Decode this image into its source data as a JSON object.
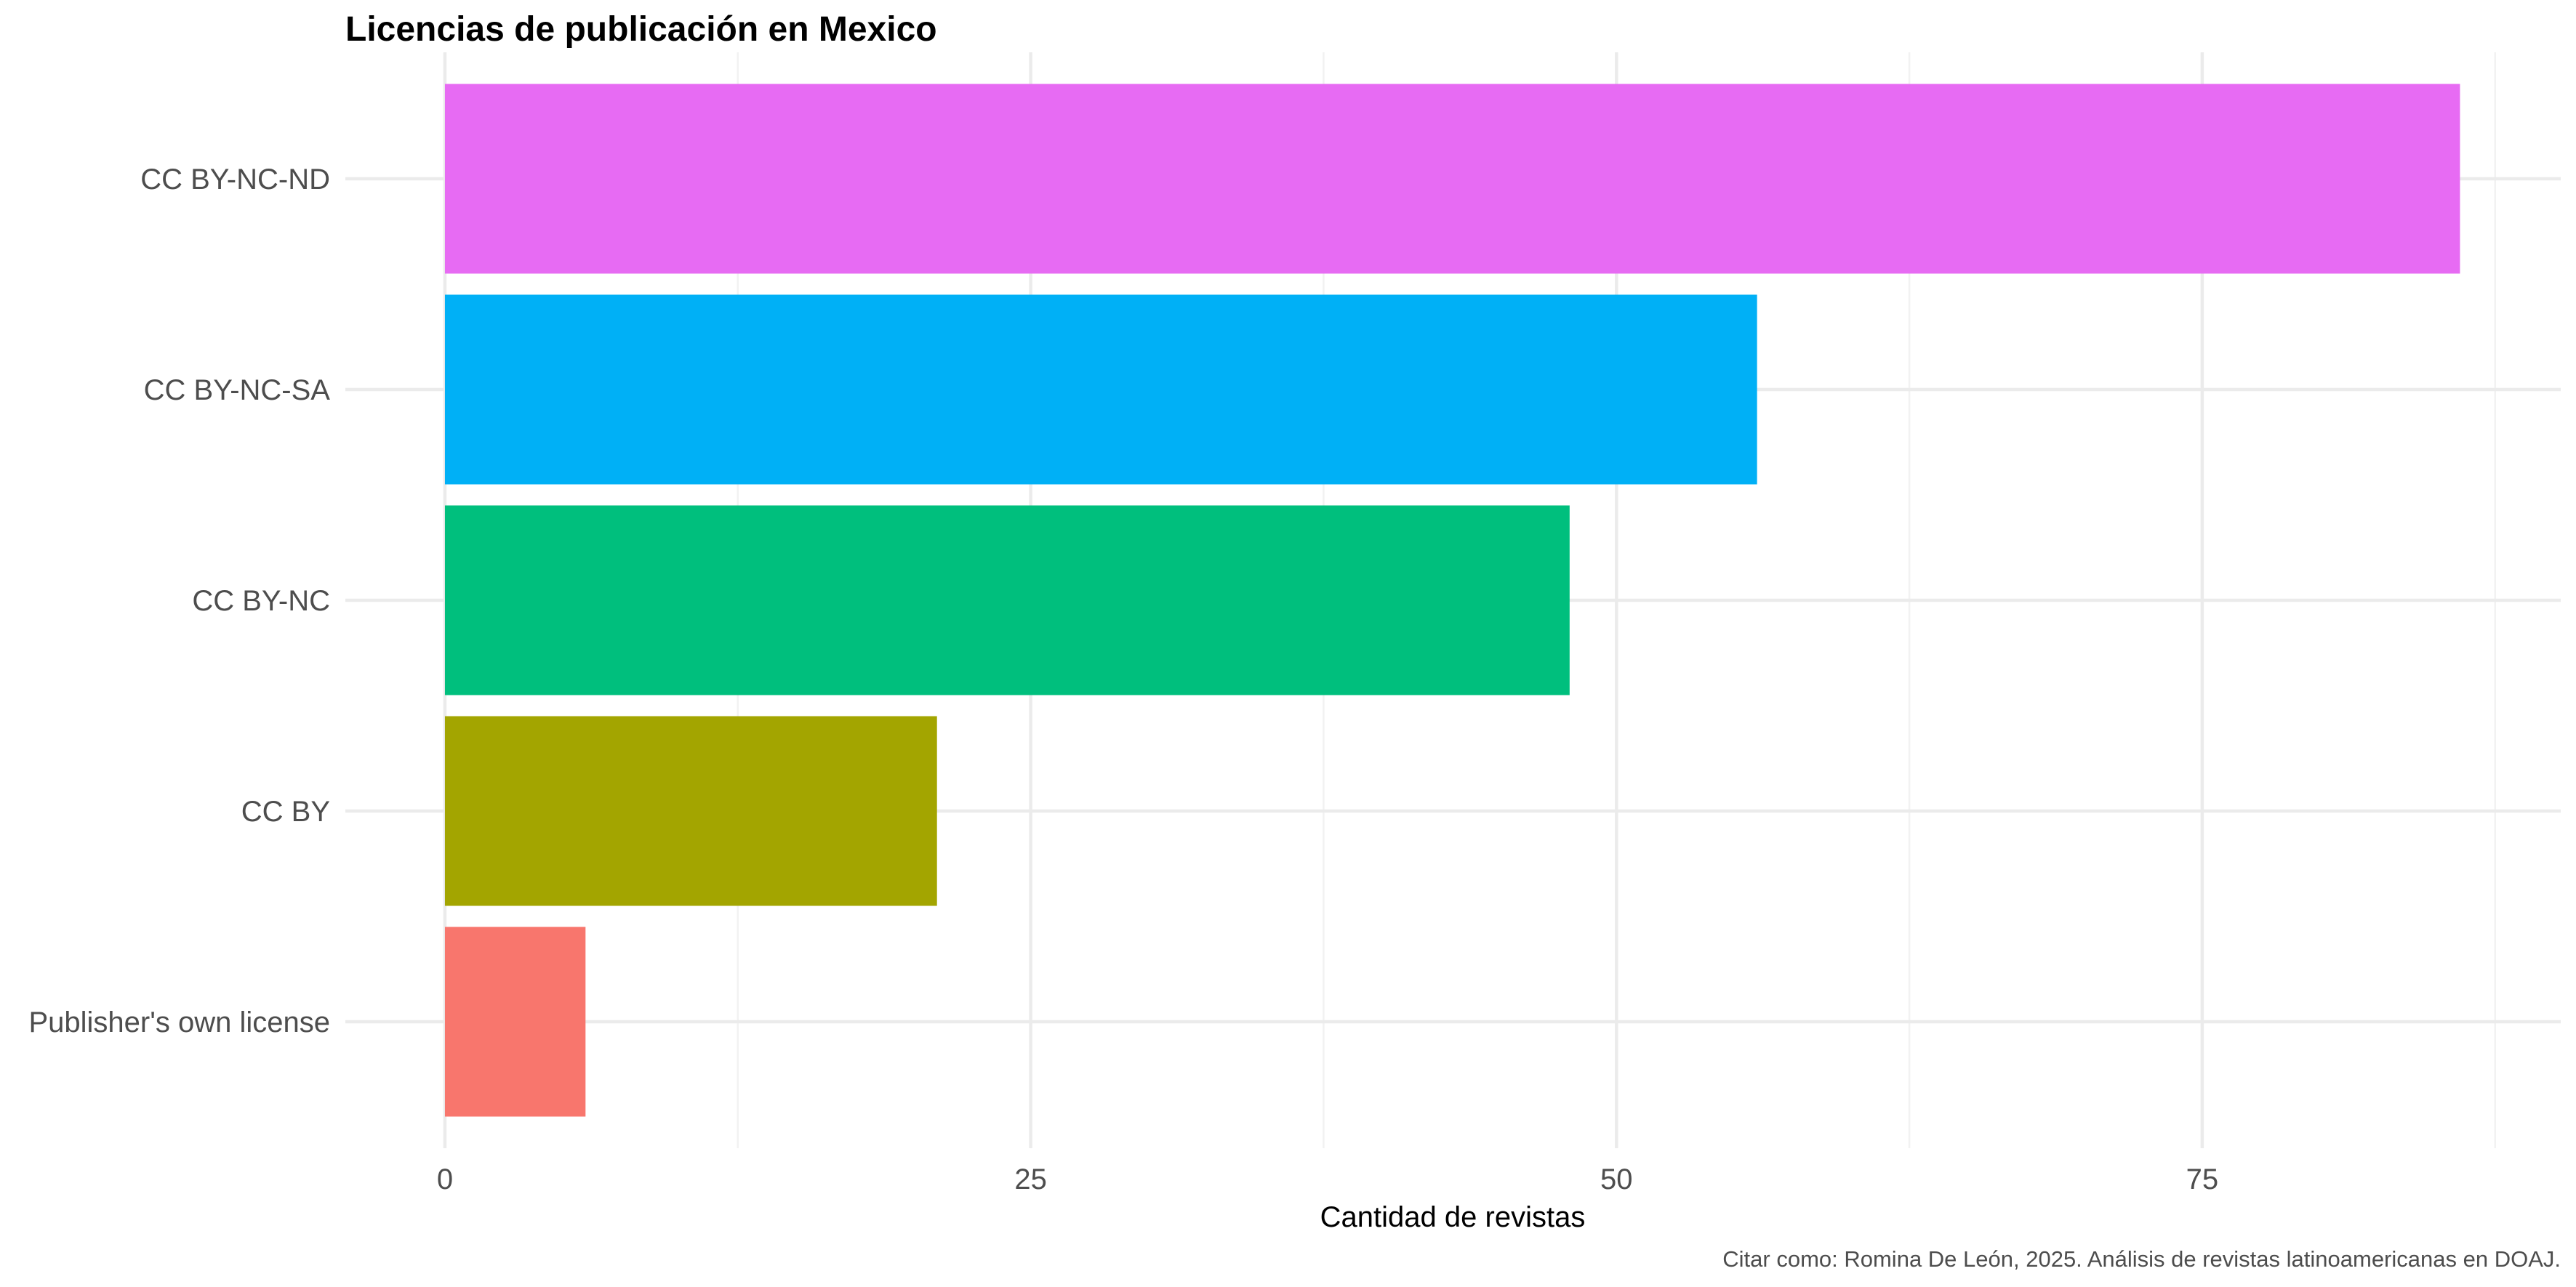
{
  "chart_data": {
    "type": "bar",
    "orientation": "horizontal",
    "title": "Licencias de publicación en Mexico",
    "xlabel": "Cantidad de revistas",
    "ylabel": "",
    "caption": "Citar como: Romina De León, 2025. Análisis de revistas latinoamericanas en DOAJ.",
    "categories": [
      "Publisher's own license",
      "CC BY",
      "CC BY-NC",
      "CC BY-NC-SA",
      "CC BY-NC-ND"
    ],
    "values": [
      6,
      21,
      48,
      56,
      86
    ],
    "colors": [
      "#F8766D",
      "#A3A500",
      "#00BF7D",
      "#00B0F6",
      "#E76BF3"
    ],
    "xlim": [
      -4.25,
      90.3
    ],
    "xticks": [
      0,
      25,
      50,
      75
    ],
    "xtick_labels": [
      "0",
      "25",
      "50",
      "75"
    ],
    "grid": true,
    "legend": "none"
  }
}
